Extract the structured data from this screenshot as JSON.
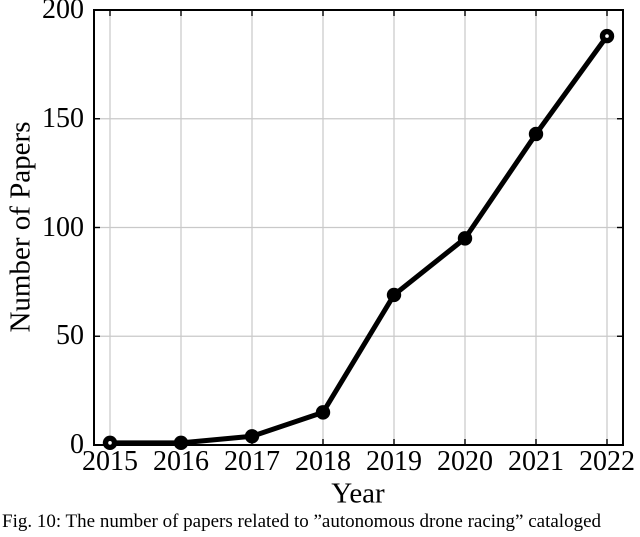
{
  "figure": {
    "caption": "Fig. 10: The number of papers related to ”autonomous drone racing” cataloged"
  },
  "chart_data": {
    "type": "line",
    "categories": [
      "2015",
      "2016",
      "2017",
      "2018",
      "2019",
      "2020",
      "2021",
      "2022"
    ],
    "series": [
      {
        "name": "Number of Papers",
        "values": [
          1,
          1,
          4,
          15,
          69,
          95,
          143,
          188
        ]
      }
    ],
    "xlabel": "Year",
    "ylabel": "Number of Papers",
    "ylim": [
      0,
      200
    ],
    "yticks": [
      0,
      50,
      100,
      150,
      200
    ],
    "grid": true,
    "legend_position": "none",
    "line_color": "#000000",
    "marker_color": "#000000",
    "axis_color": "#000000",
    "grid_color": "#c9c9c9",
    "background_color": "#ffffff"
  }
}
